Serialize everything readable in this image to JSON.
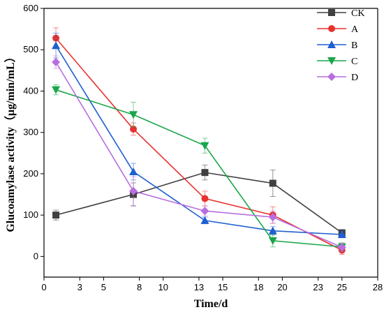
{
  "chart_data": {
    "type": "line",
    "xlabel": "Time/d",
    "ylabel": "Glucoamylase activity（μg/min/mL）",
    "xlim": [
      0,
      28
    ],
    "ylim": [
      -50,
      600
    ],
    "xticks": [
      0,
      3,
      5,
      8,
      10,
      13,
      15,
      18,
      20,
      23,
      25,
      28
    ],
    "yticks": [
      0,
      100,
      200,
      300,
      400,
      500,
      600
    ],
    "grid": false,
    "legend": "top-right",
    "x": [
      1,
      7.5,
      13.5,
      19.2,
      25
    ],
    "series": [
      {
        "name": "CK",
        "marker": "square",
        "color": "#404040",
        "values": [
          100,
          150,
          203,
          177,
          57
        ],
        "errors": [
          12,
          28,
          18,
          32,
          8
        ]
      },
      {
        "name": "A",
        "marker": "circle",
        "color": "#e8322e",
        "values": [
          528,
          308,
          140,
          100,
          15
        ],
        "errors": [
          25,
          15,
          18,
          20,
          10
        ]
      },
      {
        "name": "B",
        "marker": "triangle-up",
        "color": "#1f5fd0",
        "values": [
          510,
          205,
          87,
          62,
          53
        ],
        "errors": [
          30,
          20,
          8,
          10,
          8
        ]
      },
      {
        "name": "C",
        "marker": "triangle-down",
        "color": "#1aa64a",
        "values": [
          403,
          343,
          268,
          38,
          23
        ],
        "errors": [
          12,
          30,
          18,
          15,
          10
        ]
      },
      {
        "name": "D",
        "marker": "diamond",
        "color": "#b86ee0",
        "values": [
          470,
          158,
          110,
          95,
          22
        ],
        "errors": [
          15,
          35,
          12,
          15,
          10
        ]
      }
    ]
  }
}
